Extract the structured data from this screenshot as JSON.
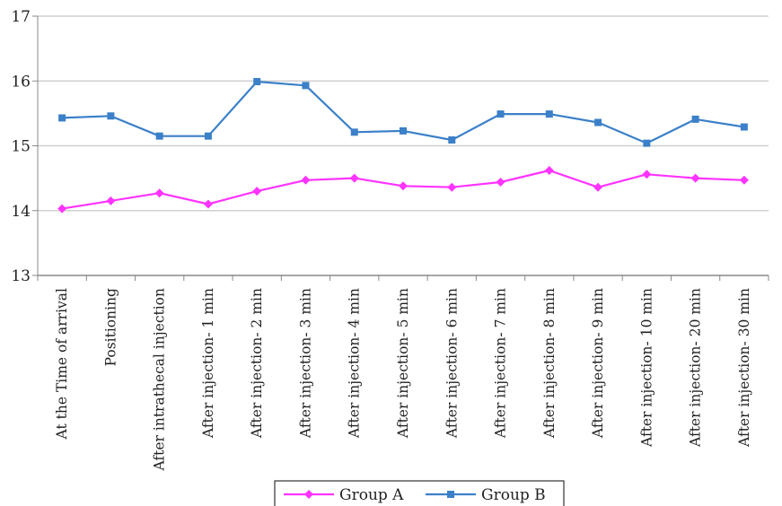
{
  "chart_data": {
    "type": "line",
    "categories": [
      "At the Time of arrival",
      "Positioning",
      "After intrathecal injection",
      "After injection- 1 min",
      "After injection- 2 min",
      "After injection- 3 min",
      "After injection- 4 min",
      "After injection- 5 min",
      "After injection- 6 min",
      "After injection- 7 min",
      "After injection- 8 min",
      "After injection- 9 min",
      "After injection- 10 min",
      "After injection- 20 min",
      "After injection- 30 min"
    ],
    "series": [
      {
        "name": "Group A",
        "color": "#ff33ff",
        "marker": "diamond",
        "values": [
          14.03,
          14.15,
          14.27,
          14.1,
          14.3,
          14.47,
          14.5,
          14.38,
          14.36,
          14.44,
          14.62,
          14.36,
          14.56,
          14.5,
          14.47
        ]
      },
      {
        "name": "Group B",
        "color": "#3b80c8",
        "marker": "square",
        "values": [
          15.43,
          15.46,
          15.15,
          15.15,
          15.99,
          15.93,
          15.21,
          15.23,
          15.09,
          15.49,
          15.49,
          15.36,
          15.04,
          15.41,
          15.29
        ]
      }
    ],
    "ylim": [
      13,
      17
    ],
    "yticks": [
      "13",
      "14",
      "15",
      "16",
      "17"
    ],
    "grid": true,
    "legend_position": "bottom",
    "title": "",
    "xlabel": "",
    "ylabel": ""
  }
}
